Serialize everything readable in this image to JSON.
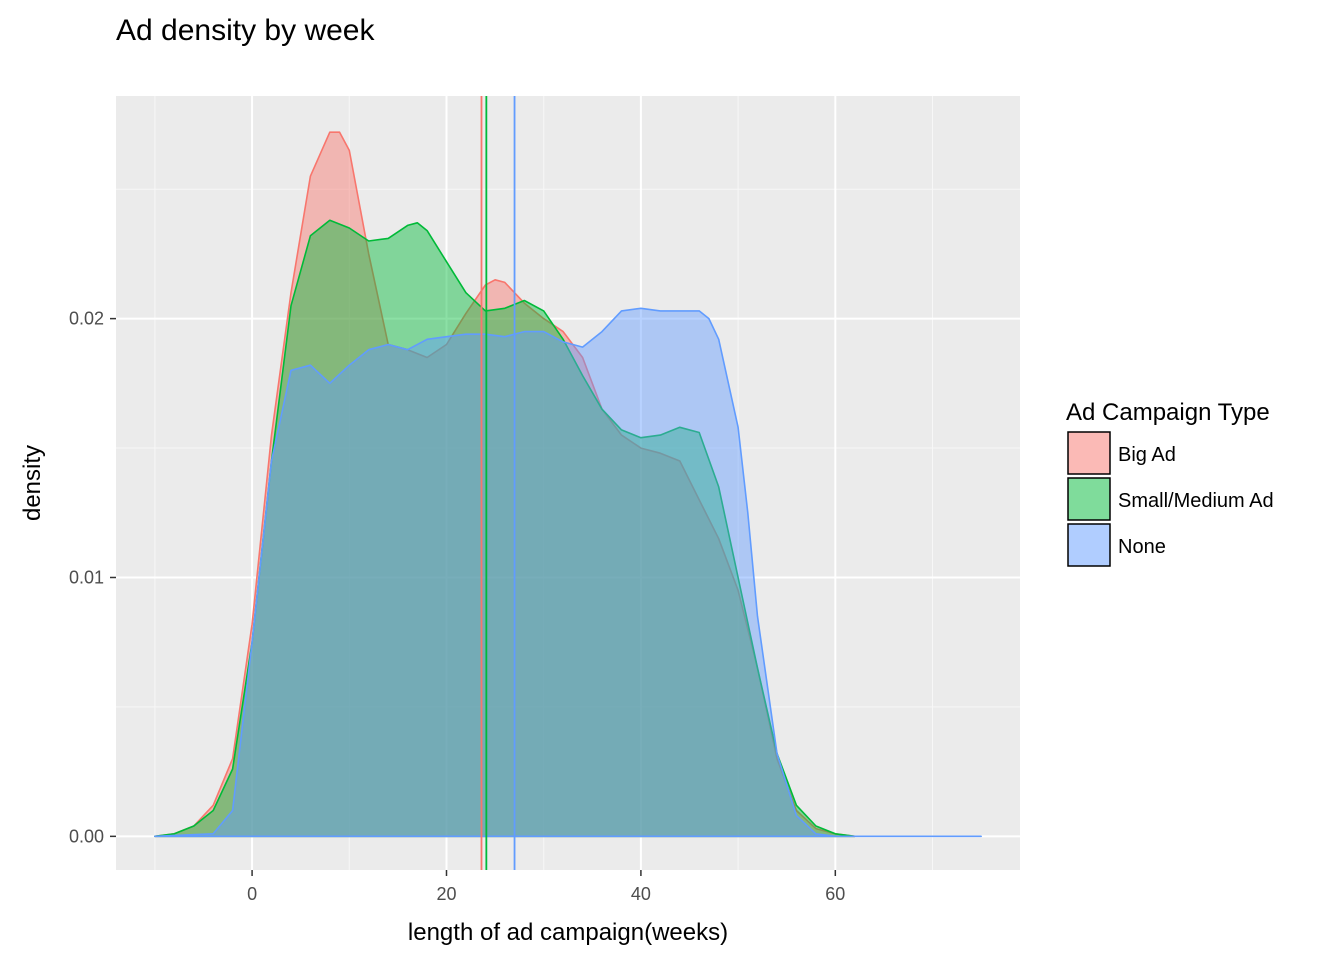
{
  "chart_data": {
    "type": "area",
    "title": "Ad density by week",
    "xlabel": "length of ad campaign(weeks)",
    "ylabel": "density",
    "xlim": [
      -14,
      79
    ],
    "ylim": [
      -0.0013,
      0.0286
    ],
    "x_ticks": [
      0,
      20,
      40,
      60
    ],
    "x_tick_labels": [
      "0",
      "20",
      "40",
      "60"
    ],
    "y_ticks": [
      0.0,
      0.01,
      0.02
    ],
    "y_tick_labels": [
      "0.00",
      "0.01",
      "0.02"
    ],
    "grid": true,
    "legend": {
      "title": "Ad Campaign Type",
      "position": "right"
    },
    "series": [
      {
        "name": "Big Ad",
        "fill": "#F8766D",
        "line": "#F8766D",
        "mean": 23.6,
        "points": [
          [
            -10,
            0
          ],
          [
            -8,
            0.0001
          ],
          [
            -6,
            0.0004
          ],
          [
            -4,
            0.0012
          ],
          [
            -2,
            0.003
          ],
          [
            0,
            0.0082
          ],
          [
            2,
            0.0155
          ],
          [
            4,
            0.021
          ],
          [
            6,
            0.0255
          ],
          [
            8,
            0.0272
          ],
          [
            9,
            0.0272
          ],
          [
            10,
            0.0265
          ],
          [
            12,
            0.0225
          ],
          [
            14,
            0.019
          ],
          [
            16,
            0.0188
          ],
          [
            18,
            0.0185
          ],
          [
            20,
            0.019
          ],
          [
            22,
            0.0202
          ],
          [
            24,
            0.0213
          ],
          [
            25,
            0.0215
          ],
          [
            26,
            0.0214
          ],
          [
            28,
            0.0206
          ],
          [
            30,
            0.02
          ],
          [
            32,
            0.0195
          ],
          [
            34,
            0.0185
          ],
          [
            36,
            0.0165
          ],
          [
            38,
            0.0155
          ],
          [
            40,
            0.015
          ],
          [
            42,
            0.0148
          ],
          [
            44,
            0.0145
          ],
          [
            46,
            0.013
          ],
          [
            48,
            0.0115
          ],
          [
            50,
            0.0095
          ],
          [
            52,
            0.0065
          ],
          [
            54,
            0.003
          ],
          [
            56,
            0.001
          ],
          [
            58,
            0.0003
          ],
          [
            60,
            0.0001
          ],
          [
            62,
            0
          ]
        ]
      },
      {
        "name": "Small/Medium Ad",
        "fill": "#00BA38",
        "line": "#00BA38",
        "mean": 24.1,
        "points": [
          [
            -10,
            0
          ],
          [
            -8,
            0.0001
          ],
          [
            -6,
            0.0004
          ],
          [
            -4,
            0.001
          ],
          [
            -2,
            0.0026
          ],
          [
            0,
            0.0075
          ],
          [
            2,
            0.0145
          ],
          [
            4,
            0.0205
          ],
          [
            6,
            0.0232
          ],
          [
            8,
            0.0238
          ],
          [
            10,
            0.0235
          ],
          [
            12,
            0.023
          ],
          [
            14,
            0.0231
          ],
          [
            16,
            0.0236
          ],
          [
            17,
            0.0237
          ],
          [
            18,
            0.0234
          ],
          [
            20,
            0.0222
          ],
          [
            22,
            0.021
          ],
          [
            24,
            0.0203
          ],
          [
            26,
            0.0204
          ],
          [
            28,
            0.0207
          ],
          [
            30,
            0.0203
          ],
          [
            32,
            0.0192
          ],
          [
            34,
            0.0178
          ],
          [
            36,
            0.0165
          ],
          [
            38,
            0.0157
          ],
          [
            40,
            0.0154
          ],
          [
            42,
            0.0155
          ],
          [
            44,
            0.0158
          ],
          [
            46,
            0.0156
          ],
          [
            48,
            0.0135
          ],
          [
            50,
            0.01
          ],
          [
            52,
            0.0065
          ],
          [
            54,
            0.0032
          ],
          [
            56,
            0.0012
          ],
          [
            58,
            0.0004
          ],
          [
            60,
            0.0001
          ],
          [
            62,
            0
          ]
        ]
      },
      {
        "name": "None",
        "fill": "#619CFF",
        "line": "#619CFF",
        "mean": 27.0,
        "points": [
          [
            -10,
            0
          ],
          [
            -4,
            0.0001
          ],
          [
            -2,
            0.001
          ],
          [
            0,
            0.0075
          ],
          [
            2,
            0.0145
          ],
          [
            4,
            0.018
          ],
          [
            6,
            0.0182
          ],
          [
            8,
            0.0175
          ],
          [
            10,
            0.0182
          ],
          [
            12,
            0.0188
          ],
          [
            14,
            0.019
          ],
          [
            16,
            0.0188
          ],
          [
            18,
            0.0192
          ],
          [
            20,
            0.0193
          ],
          [
            22,
            0.0194
          ],
          [
            24,
            0.0194
          ],
          [
            26,
            0.0193
          ],
          [
            28,
            0.0195
          ],
          [
            30,
            0.0195
          ],
          [
            32,
            0.0191
          ],
          [
            34,
            0.0189
          ],
          [
            36,
            0.0195
          ],
          [
            38,
            0.0203
          ],
          [
            40,
            0.0204
          ],
          [
            42,
            0.0203
          ],
          [
            44,
            0.0203
          ],
          [
            46,
            0.0203
          ],
          [
            47,
            0.02
          ],
          [
            48,
            0.0192
          ],
          [
            50,
            0.0158
          ],
          [
            51,
            0.0125
          ],
          [
            52,
            0.0085
          ],
          [
            54,
            0.0032
          ],
          [
            56,
            0.0008
          ],
          [
            58,
            0.0001
          ],
          [
            60,
            0
          ],
          [
            75,
            0
          ]
        ]
      }
    ]
  }
}
